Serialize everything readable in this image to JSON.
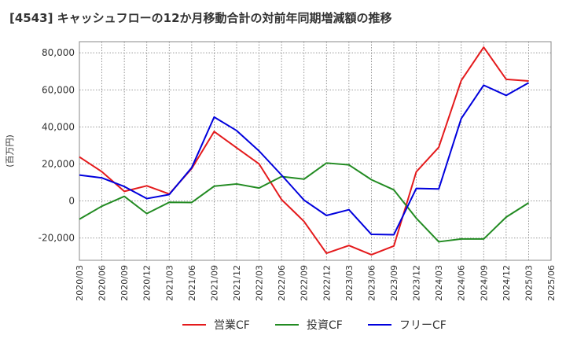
{
  "chart_data": {
    "type": "line",
    "title": "[4543]  キャッシュフローの12か月移動合計の対前年同期増減額の推移",
    "ylabel": "(百万円)",
    "xlabel": "",
    "ylim": [
      -32000,
      86000
    ],
    "yticks": [
      -20000,
      0,
      20000,
      40000,
      60000,
      80000
    ],
    "ytick_labels": [
      "-20,000",
      "0",
      "20,000",
      "40,000",
      "60,000",
      "80,000"
    ],
    "x": [
      "2020/03",
      "2020/06",
      "2020/09",
      "2020/12",
      "2021/03",
      "2021/06",
      "2021/09",
      "2021/12",
      "2022/03",
      "2022/06",
      "2022/09",
      "2022/12",
      "2023/03",
      "2023/06",
      "2023/09",
      "2023/12",
      "2024/03",
      "2024/06",
      "2024/09",
      "2024/12",
      "2025/03",
      "2025/06"
    ],
    "grid": true,
    "legend_position": "bottom",
    "series": [
      {
        "name": "営業CF",
        "color": "#e41a1c",
        "values": [
          23800,
          15800,
          5200,
          8200,
          3800,
          17500,
          37500,
          28700,
          20000,
          800,
          -11000,
          -28200,
          -24000,
          -29000,
          -24300,
          15800,
          29000,
          65000,
          83000,
          65700,
          64800,
          null
        ]
      },
      {
        "name": "投資CF",
        "color": "#228b22",
        "values": [
          -9800,
          -2800,
          2500,
          -6800,
          -700,
          -800,
          8000,
          9200,
          7000,
          13200,
          11800,
          20500,
          19500,
          11500,
          6000,
          -9300,
          -22000,
          -20500,
          -20500,
          -8700,
          -1000,
          null
        ]
      },
      {
        "name": "フリーCF",
        "color": "#0000dd",
        "values": [
          14000,
          12500,
          7800,
          1300,
          3500,
          18000,
          45300,
          38000,
          27000,
          14000,
          500,
          -7800,
          -4700,
          -18000,
          -18200,
          6800,
          6500,
          44500,
          62500,
          57000,
          63800,
          null
        ]
      }
    ]
  }
}
